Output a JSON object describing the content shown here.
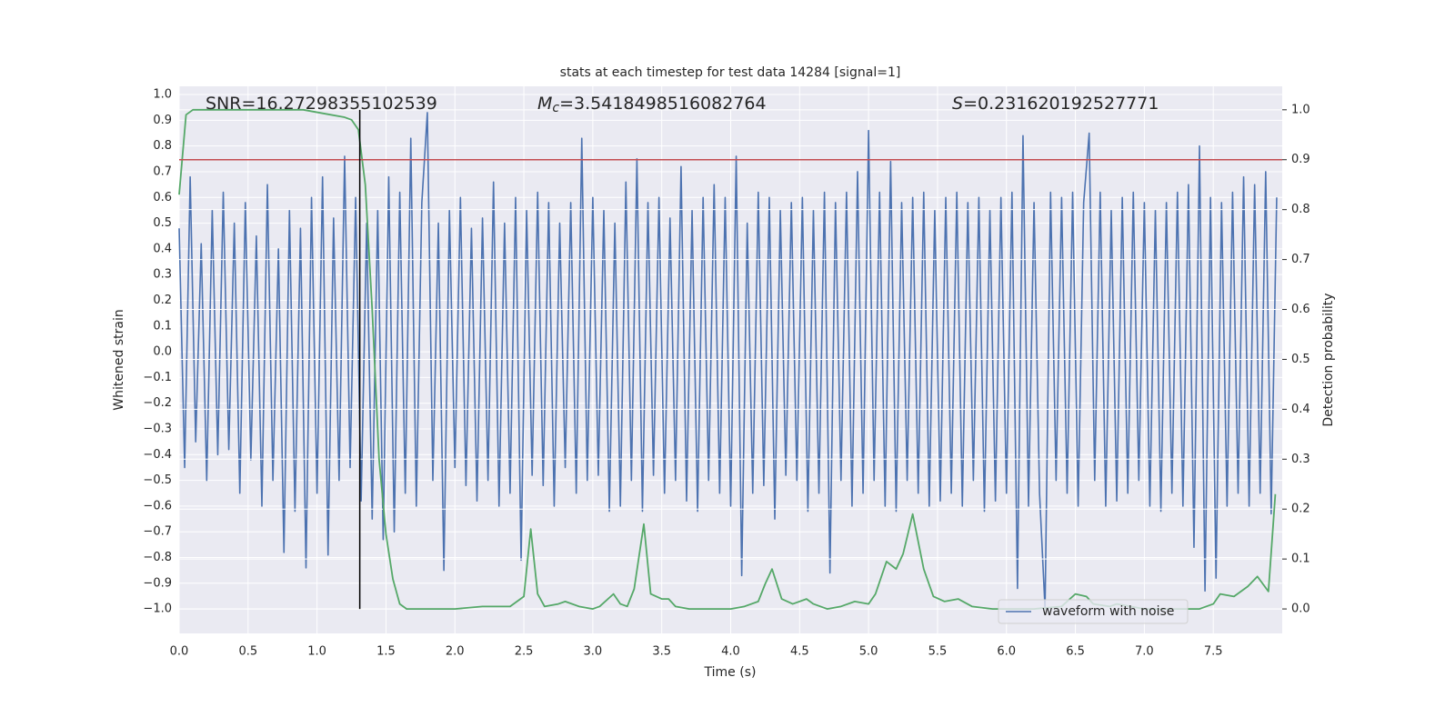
{
  "chart_data": {
    "type": "line",
    "title": "stats at each timestep for test data 14284 [signal=1]",
    "xlabel": "Time (s)",
    "ylabel": "Whitened strain",
    "y2label": "Detection probability",
    "xlim": [
      0,
      8.0
    ],
    "ylim": [
      -1.095,
      1.032
    ],
    "y2lim": [
      -0.049,
      1.047
    ],
    "xticks": [
      {
        "value": 0,
        "label": "0.0"
      },
      {
        "value": 0.5,
        "label": "0.5"
      },
      {
        "value": 1,
        "label": "1.0"
      },
      {
        "value": 1.5,
        "label": "1.5"
      },
      {
        "value": 2,
        "label": "2.0"
      },
      {
        "value": 2.5,
        "label": "2.5"
      },
      {
        "value": 3,
        "label": "3.0"
      },
      {
        "value": 3.5,
        "label": "3.5"
      },
      {
        "value": 4,
        "label": "4.0"
      },
      {
        "value": 4.5,
        "label": "4.5"
      },
      {
        "value": 5,
        "label": "5.0"
      },
      {
        "value": 5.5,
        "label": "5.5"
      },
      {
        "value": 6,
        "label": "6.0"
      },
      {
        "value": 6.5,
        "label": "6.5"
      },
      {
        "value": 7,
        "label": "7.0"
      },
      {
        "value": 7.5,
        "label": "7.5"
      }
    ],
    "yticks": [
      {
        "value": -1,
        "label": "−1.0"
      },
      {
        "value": -0.9,
        "label": "−0.9"
      },
      {
        "value": -0.8,
        "label": "−0.8"
      },
      {
        "value": -0.7,
        "label": "−0.7"
      },
      {
        "value": -0.6,
        "label": "−0.6"
      },
      {
        "value": -0.5,
        "label": "−0.5"
      },
      {
        "value": -0.4,
        "label": "−0.4"
      },
      {
        "value": -0.3,
        "label": "−0.3"
      },
      {
        "value": -0.2,
        "label": "−0.2"
      },
      {
        "value": -0.1,
        "label": "−0.1"
      },
      {
        "value": 0,
        "label": "0.0"
      },
      {
        "value": 0.1,
        "label": "0.1"
      },
      {
        "value": 0.2,
        "label": "0.2"
      },
      {
        "value": 0.3,
        "label": "0.3"
      },
      {
        "value": 0.4,
        "label": "0.4"
      },
      {
        "value": 0.5,
        "label": "0.5"
      },
      {
        "value": 0.6,
        "label": "0.6"
      },
      {
        "value": 0.7,
        "label": "0.7"
      },
      {
        "value": 0.8,
        "label": "0.8"
      },
      {
        "value": 0.9,
        "label": "0.9"
      },
      {
        "value": 1,
        "label": "1.0"
      }
    ],
    "y2ticks": [
      {
        "value": 0,
        "label": "0.0"
      },
      {
        "value": 0.1,
        "label": "0.1"
      },
      {
        "value": 0.2,
        "label": "0.2"
      },
      {
        "value": 0.3,
        "label": "0.3"
      },
      {
        "value": 0.4,
        "label": "0.4"
      },
      {
        "value": 0.5,
        "label": "0.5"
      },
      {
        "value": 0.6,
        "label": "0.6"
      },
      {
        "value": 0.7,
        "label": "0.7"
      },
      {
        "value": 0.8,
        "label": "0.8"
      },
      {
        "value": 0.9,
        "label": "0.9"
      },
      {
        "value": 1,
        "label": "1.0"
      }
    ],
    "grid": true,
    "legend": "lower right",
    "series": [
      {
        "name": "waveform with noise",
        "color": "#4c72b0",
        "x": [
          0,
          0.04,
          0.08,
          0.12,
          0.16,
          0.2,
          0.24,
          0.28,
          0.32,
          0.36,
          0.4,
          0.44,
          0.48,
          0.52,
          0.56,
          0.6,
          0.64,
          0.68,
          0.72,
          0.76,
          0.8,
          0.84,
          0.88,
          0.92,
          0.96,
          1,
          1.04,
          1.08,
          1.12,
          1.16,
          1.2,
          1.24,
          1.28,
          1.32,
          1.36,
          1.4,
          1.44,
          1.48,
          1.52,
          1.56,
          1.6,
          1.64,
          1.68,
          1.72,
          1.76,
          1.8,
          1.84,
          1.88,
          1.92,
          1.96,
          2,
          2.04,
          2.08,
          2.12,
          2.16,
          2.2,
          2.24,
          2.28,
          2.32,
          2.36,
          2.4,
          2.44,
          2.48,
          2.52,
          2.56,
          2.6,
          2.64,
          2.68,
          2.72,
          2.76,
          2.8,
          2.84,
          2.88,
          2.92,
          2.96,
          3,
          3.04,
          3.08,
          3.12,
          3.16,
          3.2,
          3.24,
          3.28,
          3.32,
          3.36,
          3.4,
          3.44,
          3.48,
          3.52,
          3.56,
          3.6,
          3.64,
          3.68,
          3.72,
          3.76,
          3.8,
          3.84,
          3.88,
          3.92,
          3.96,
          4,
          4.04,
          4.08,
          4.12,
          4.16,
          4.2,
          4.24,
          4.28,
          4.32,
          4.36,
          4.4,
          4.44,
          4.48,
          4.52,
          4.56,
          4.6,
          4.64,
          4.68,
          4.72,
          4.76,
          4.8,
          4.84,
          4.88,
          4.92,
          4.96,
          5,
          5.04,
          5.08,
          5.12,
          5.16,
          5.2,
          5.24,
          5.28,
          5.32,
          5.36,
          5.4,
          5.44,
          5.48,
          5.52,
          5.56,
          5.6,
          5.64,
          5.68,
          5.72,
          5.76,
          5.8,
          5.84,
          5.88,
          5.92,
          5.96,
          6,
          6.04,
          6.08,
          6.12,
          6.16,
          6.2,
          6.24,
          6.28,
          6.32,
          6.36,
          6.4,
          6.44,
          6.48,
          6.52,
          6.56,
          6.6,
          6.64,
          6.68,
          6.72,
          6.76,
          6.8,
          6.84,
          6.88,
          6.92,
          6.96,
          7,
          7.04,
          7.08,
          7.12,
          7.16,
          7.2,
          7.24,
          7.28,
          7.32,
          7.36,
          7.4,
          7.44,
          7.48,
          7.52,
          7.56,
          7.6,
          7.64,
          7.68,
          7.72,
          7.76,
          7.8,
          7.84,
          7.88,
          7.92,
          7.96
        ],
        "values": [
          0.48,
          -0.45,
          0.68,
          -0.35,
          0.42,
          -0.5,
          0.55,
          -0.4,
          0.62,
          -0.38,
          0.5,
          -0.55,
          0.58,
          -0.42,
          0.45,
          -0.6,
          0.65,
          -0.5,
          0.4,
          -0.78,
          0.55,
          -0.62,
          0.48,
          -0.84,
          0.6,
          -0.55,
          0.68,
          -0.79,
          0.52,
          -0.5,
          0.76,
          -0.45,
          0.6,
          -0.58,
          0.5,
          -0.65,
          0.55,
          -0.73,
          0.68,
          -0.7,
          0.62,
          -0.55,
          0.83,
          -0.6,
          0.58,
          0.93,
          -0.5,
          0.5,
          -0.85,
          0.55,
          -0.45,
          0.6,
          -0.52,
          0.48,
          -0.58,
          0.52,
          -0.5,
          0.66,
          -0.6,
          0.5,
          -0.55,
          0.6,
          -0.81,
          0.55,
          -0.48,
          0.62,
          -0.52,
          0.58,
          -0.6,
          0.5,
          -0.45,
          0.58,
          -0.55,
          0.83,
          -0.5,
          0.6,
          -0.48,
          0.55,
          -0.62,
          0.5,
          -0.6,
          0.66,
          -0.5,
          0.75,
          -0.62,
          0.58,
          -0.48,
          0.6,
          -0.55,
          0.52,
          -0.5,
          0.72,
          -0.58,
          0.55,
          -0.62,
          0.6,
          -0.5,
          0.65,
          -0.55,
          0.6,
          -0.6,
          0.76,
          -0.87,
          0.5,
          -0.55,
          0.62,
          -0.52,
          0.6,
          -0.65,
          0.55,
          -0.48,
          0.58,
          -0.5,
          0.6,
          -0.62,
          0.55,
          -0.55,
          0.62,
          -0.86,
          0.58,
          -0.5,
          0.62,
          -0.6,
          0.7,
          -0.55,
          0.86,
          -0.5,
          0.62,
          -0.6,
          0.74,
          -0.62,
          0.58,
          -0.5,
          0.6,
          -0.55,
          0.62,
          -0.6,
          0.55,
          -0.58,
          0.6,
          -0.55,
          0.62,
          -0.6,
          0.58,
          -0.5,
          0.6,
          -0.62,
          0.55,
          -0.58,
          0.6,
          -0.55,
          0.62,
          -0.92,
          0.84,
          -0.6,
          0.58,
          -0.55,
          -1.0,
          0.62,
          -0.5,
          0.6,
          -0.55,
          0.62,
          -0.6,
          0.58,
          0.85,
          -0.5,
          0.62,
          -0.6,
          0.55,
          -0.58,
          0.6,
          -0.55,
          0.62,
          -0.5,
          0.58,
          -0.6,
          0.55,
          -0.62,
          0.58,
          -0.55,
          0.62,
          -0.6,
          0.65,
          -0.76,
          0.8,
          -0.93,
          0.6,
          -0.88,
          0.58,
          -0.6,
          0.62,
          -0.55,
          0.68,
          -0.6,
          0.65,
          -0.55,
          0.7,
          -0.63,
          0.6
        ]
      },
      {
        "color": "#55a868",
        "axis": "y2",
        "x": [
          0,
          0.05,
          0.1,
          0.5,
          0.9,
          1,
          1.1,
          1.2,
          1.25,
          1.3,
          1.35,
          1.4,
          1.45,
          1.5,
          1.55,
          1.6,
          1.65,
          1.7,
          2,
          2.2,
          2.4,
          2.5,
          2.55,
          2.6,
          2.65,
          2.75,
          2.8,
          2.9,
          3,
          3.05,
          3.15,
          3.2,
          3.25,
          3.3,
          3.37,
          3.42,
          3.5,
          3.55,
          3.6,
          3.7,
          3.8,
          4,
          4.1,
          4.2,
          4.25,
          4.3,
          4.37,
          4.45,
          4.55,
          4.6,
          4.7,
          4.8,
          4.9,
          5,
          5.05,
          5.13,
          5.2,
          5.25,
          5.32,
          5.4,
          5.47,
          5.55,
          5.65,
          5.75,
          5.9,
          6,
          6.2,
          6.4,
          6.5,
          6.58,
          6.63,
          6.75,
          6.8,
          6.9,
          7,
          7.4,
          7.5,
          7.55,
          7.65,
          7.75,
          7.82,
          7.9,
          7.95
        ],
        "values": [
          0.83,
          0.99,
          1.0,
          1.0,
          1.0,
          0.995,
          0.99,
          0.985,
          0.98,
          0.96,
          0.85,
          0.6,
          0.3,
          0.15,
          0.06,
          0.01,
          0,
          0,
          0,
          0.005,
          0.005,
          0.025,
          0.16,
          0.03,
          0.005,
          0.01,
          0.015,
          0.005,
          0,
          0.005,
          0.03,
          0.01,
          0.005,
          0.04,
          0.17,
          0.03,
          0.02,
          0.02,
          0.005,
          0,
          0,
          0,
          0.005,
          0.015,
          0.05,
          0.08,
          0.02,
          0.01,
          0.02,
          0.01,
          0,
          0.005,
          0.015,
          0.01,
          0.03,
          0.095,
          0.08,
          0.11,
          0.19,
          0.08,
          0.025,
          0.015,
          0.02,
          0.005,
          0,
          0,
          0,
          0.005,
          0.03,
          0.025,
          0.01,
          0.005,
          0.01,
          0.005,
          0,
          0,
          0.01,
          0.03,
          0.025,
          0.045,
          0.065,
          0.035,
          0.23
        ]
      }
    ],
    "hlines": [
      {
        "value": 0.9,
        "axis": "y2",
        "color": "#c44e52"
      }
    ],
    "vlines": [
      {
        "x": 1.31,
        "ymin": 0,
        "ymax": 1,
        "axis": "y2",
        "color": "#000000"
      }
    ],
    "annotations": [
      {
        "text": "SNR=16.27298355102539"
      },
      {
        "symbol": "M",
        "subscript": "c",
        "text": "=3.5418498516082764"
      },
      {
        "symbol": "S",
        "text": "=0.231620192527771"
      }
    ]
  }
}
